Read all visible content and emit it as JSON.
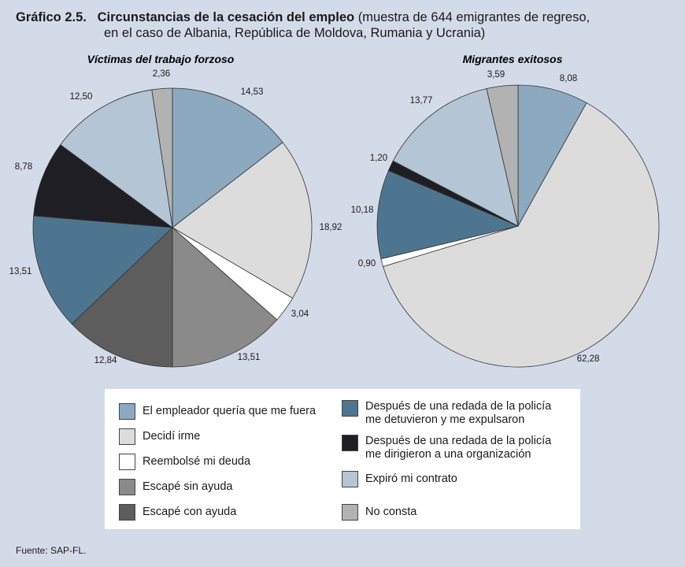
{
  "header": {
    "figure_number": "Gráfico 2.5.",
    "title": "Circunstancias de la cesación del empleo",
    "subtitle_line1": "(muestra de 644 emigrantes de regreso,",
    "subtitle_line2": "en el caso de Albania, República de Moldova, Rumania y Ucrania)"
  },
  "colors": {
    "background": "#d4dbe8",
    "categories": [
      "#8ca9c0",
      "#dcdcdc",
      "#ffffff",
      "#8a8a8a",
      "#5d5d5d",
      "#4e7590",
      "#1f1e24",
      "#b4c5d5",
      "#b2b2b2"
    ]
  },
  "legend": {
    "items": [
      "El empleador quería que me fuera",
      "Decidí irme",
      "Reembolsé mi deuda",
      "Escapé sin ayuda",
      "Escapé con ayuda",
      "Después de una redada de la policía\nme detuvieron y me expulsaron",
      "Después de una redada de la policía\nme dirigieron a una organización",
      "Expiró mi contrato",
      "No consta"
    ]
  },
  "chart_data": [
    {
      "type": "pie",
      "title": "Víctimas del trabajo forzoso",
      "categories": [
        "El empleador quería que me fuera",
        "Decidí irme",
        "Reembolsé mi deuda",
        "Escapé sin ayuda",
        "Escapé con ayuda",
        "Después de una redada de la policía me detuvieron y me expulsaron",
        "Después de una redada de la policía me dirigieron a una organización",
        "Expiró mi contrato",
        "No consta"
      ],
      "values": [
        14.53,
        18.92,
        3.04,
        13.51,
        12.84,
        13.51,
        8.78,
        12.5,
        2.36
      ],
      "labels": [
        "14,53",
        "18,92",
        "3,04",
        "13,51",
        "12,84",
        "13,51",
        "8,78",
        "12,50",
        "2,36"
      ]
    },
    {
      "type": "pie",
      "title": "Migrantes exitosos",
      "categories": [
        "El empleador quería que me fuera",
        "Decidí irme",
        "Reembolsé mi deuda",
        "Escapé sin ayuda",
        "Escapé con ayuda",
        "Después de una redada de la policía me detuvieron y me expulsaron",
        "Después de una redada de la policía me dirigieron a una organización",
        "Expiró mi contrato",
        "No consta"
      ],
      "values": [
        8.08,
        62.28,
        0.9,
        0,
        0,
        10.18,
        1.2,
        13.77,
        3.59
      ],
      "labels": [
        "8,08",
        "62,28",
        "0,90",
        "",
        "",
        "10,18",
        "1,20",
        "13,77",
        "3,59"
      ]
    }
  ],
  "source": "Fuente: SAP-FL."
}
